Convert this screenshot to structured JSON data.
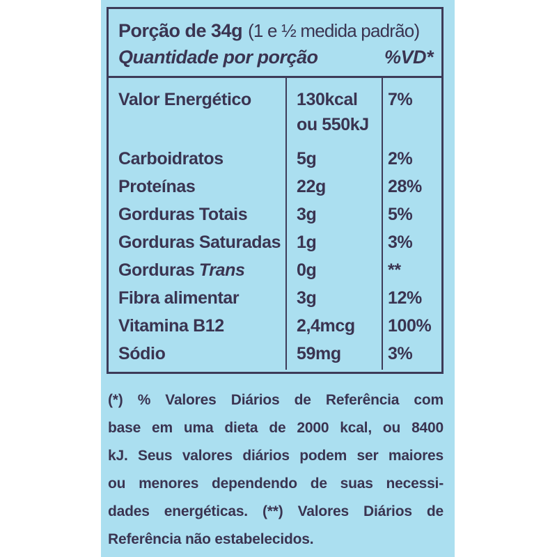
{
  "colors": {
    "page_background": "#ffffff",
    "panel_background": "#abdff0",
    "text": "#3a3451",
    "border": "#3d3b58"
  },
  "header": {
    "portion": "Porção de 34g",
    "portion_note": "(1 e ½ medida padrão)",
    "quantity_per_serving": "Quantidade por porção",
    "daily_value": "%VD*"
  },
  "table": {
    "rows": [
      {
        "name": "Valor Energético",
        "amount": "130kcal\nou 550kJ",
        "dv": "7%"
      },
      {
        "name": "Carboidratos",
        "amount": "5g",
        "dv": "2%"
      },
      {
        "name": "Proteínas",
        "amount": "22g",
        "dv": "28%"
      },
      {
        "name": "Gorduras Totais",
        "amount": "3g",
        "dv": "5%"
      },
      {
        "name": "Gorduras Saturadas",
        "amount": "1g",
        "dv": "3%"
      },
      {
        "name_regular": "Gorduras ",
        "name_italic": "Trans",
        "amount": "0g",
        "dv": "**"
      },
      {
        "name": "Fibra alimentar",
        "amount": "3g",
        "dv": "12%"
      },
      {
        "name": "Vitamina B12",
        "amount": "2,4mcg",
        "dv": "100%"
      },
      {
        "name": "Sódio",
        "amount": "59mg",
        "dv": "3%"
      }
    ]
  },
  "footnote": {
    "lines": [
      "(*) % Valores Diários de Referência com",
      "base em uma dieta de 2000 kcal, ou 8400",
      "kJ. Seus valores diários podem ser maiores",
      "ou menores dependendo de suas necessi-",
      "dades energéticas. (**) Valores Diários de",
      "Referência não estabelecidos."
    ]
  }
}
